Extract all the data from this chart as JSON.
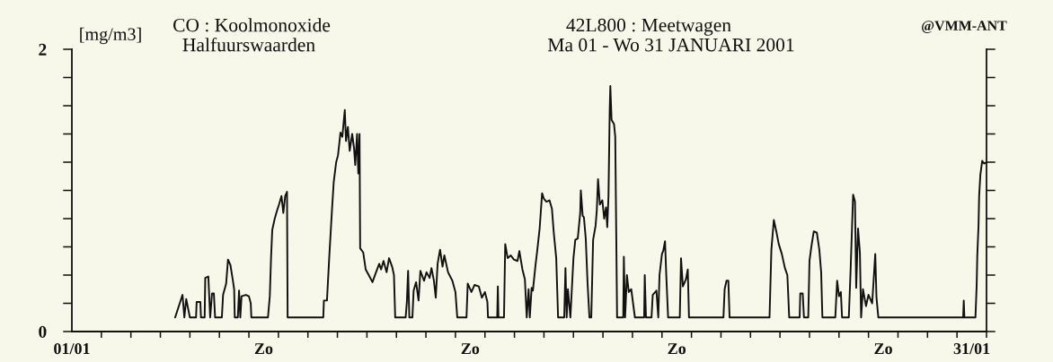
{
  "chart_data": {
    "type": "line",
    "title": "CO : Koolmonoxide",
    "subtitle": "Halfuurswaarden",
    "ylabel": "[mg/m3]",
    "annotations": [
      "42L800 : Meetwagen",
      "Ma 01 - Wo 31 JANUARI 2001",
      "@VMM-ANT"
    ],
    "xlim": [
      "2001-01-01T00:00",
      "2001-02-01T00:00"
    ],
    "ylim": [
      0,
      2
    ],
    "xticks": [
      {
        "value": "2001-01-01",
        "label": "01/01"
      },
      {
        "value": "2001-01-02",
        "label": null
      },
      {
        "value": "2001-01-03",
        "label": null
      },
      {
        "value": "2001-01-04",
        "label": null
      },
      {
        "value": "2001-01-05",
        "label": null
      },
      {
        "value": "2001-01-06",
        "label": null
      },
      {
        "value": "2001-01-07",
        "label": null
      },
      {
        "value": "2001-01-07T12:00",
        "label": "Zo"
      },
      {
        "value": "2001-01-08",
        "label": null
      },
      {
        "value": "2001-01-09",
        "label": null
      },
      {
        "value": "2001-01-10",
        "label": null
      },
      {
        "value": "2001-01-11",
        "label": null
      },
      {
        "value": "2001-01-12",
        "label": null
      },
      {
        "value": "2001-01-13",
        "label": null
      },
      {
        "value": "2001-01-14",
        "label": null
      },
      {
        "value": "2001-01-14T12:00",
        "label": "Zo"
      },
      {
        "value": "2001-01-15",
        "label": null
      },
      {
        "value": "2001-01-16",
        "label": null
      },
      {
        "value": "2001-01-17",
        "label": null
      },
      {
        "value": "2001-01-18",
        "label": null
      },
      {
        "value": "2001-01-19",
        "label": null
      },
      {
        "value": "2001-01-20",
        "label": null
      },
      {
        "value": "2001-01-21",
        "label": null
      },
      {
        "value": "2001-01-21T12:00",
        "label": "Zo"
      },
      {
        "value": "2001-01-22",
        "label": null
      },
      {
        "value": "2001-01-23",
        "label": null
      },
      {
        "value": "2001-01-24",
        "label": null
      },
      {
        "value": "2001-01-25",
        "label": null
      },
      {
        "value": "2001-01-26",
        "label": null
      },
      {
        "value": "2001-01-27",
        "label": null
      },
      {
        "value": "2001-01-28",
        "label": null
      },
      {
        "value": "2001-01-28T12:00",
        "label": "Zo"
      },
      {
        "value": "2001-01-29",
        "label": null
      },
      {
        "value": "2001-01-30",
        "label": null
      },
      {
        "value": "2001-01-31",
        "label": null
      },
      {
        "value": "2001-01-31T12:00",
        "label": "31/01"
      },
      {
        "value": "2001-02-01",
        "label": null
      }
    ],
    "yticks": [
      0,
      {
        "value": 0.2,
        "label": null
      },
      {
        "value": 0.4,
        "label": null
      },
      {
        "value": 0.6,
        "label": null
      },
      {
        "value": 0.8,
        "label": null
      },
      {
        "value": 1.0,
        "label": null
      },
      {
        "value": 1.2,
        "label": null
      },
      {
        "value": 1.4,
        "label": null
      },
      {
        "value": 1.6,
        "label": null
      },
      {
        "value": 1.8,
        "label": null
      },
      2
    ],
    "x": [
      "2001-01-04T12:00",
      "2001-01-04T18:00",
      "2001-01-04T19:30",
      "2001-01-04T21:00",
      "2001-01-05T00:00",
      "2001-01-05T05:00",
      "2001-01-05T05:30",
      "2001-01-05T08:30",
      "2001-01-05T09:00",
      "2001-01-05T12:00",
      "2001-01-05T12:30",
      "2001-01-05T15:00",
      "2001-01-05T16:30",
      "2001-01-05T18:00",
      "2001-01-05T19:30",
      "2001-01-05T20:30",
      "2001-01-06T02:00",
      "2001-01-06T03:00",
      "2001-01-06T05:30",
      "2001-01-06T07:00",
      "2001-01-06T09:00",
      "2001-01-06T11:00",
      "2001-01-06T12:00",
      "2001-01-06T12:30",
      "2001-01-06T15:00",
      "2001-01-06T16:00",
      "2001-01-06T17:00",
      "2001-01-06T18:00",
      "2001-01-06T21:30",
      "2001-01-07T00:00",
      "2001-01-07T01:30",
      "2001-01-07T02:00",
      "2001-01-07T15:30",
      "2001-01-07T17:00",
      "2001-01-07T18:00",
      "2001-01-07T19:00",
      "2001-01-07T21:00",
      "2001-01-07T23:00",
      "2001-01-08T00:30",
      "2001-01-08T02:30",
      "2001-01-08T04:00",
      "2001-01-08T05:30",
      "2001-01-08T07:00",
      "2001-01-08T07:30",
      "2001-01-09T12:30",
      "2001-01-09T13:00",
      "2001-01-09T15:30",
      "2001-01-09T17:30",
      "2001-01-09T19:30",
      "2001-01-09T21:00",
      "2001-01-09T23:00",
      "2001-01-10T00:30",
      "2001-01-10T02:30",
      "2001-01-10T04:00",
      "2001-01-10T06:00",
      "2001-01-10T07:00",
      "2001-01-10T08:30",
      "2001-01-10T10:00",
      "2001-01-10T12:00",
      "2001-01-10T13:30",
      "2001-01-10T14:30",
      "2001-01-10T16:00",
      "2001-01-10T17:00",
      "2001-01-10T18:00",
      "2001-01-10T18:30",
      "2001-01-10T21:00",
      "2001-01-10T23:00",
      "2001-01-11T01:30",
      "2001-01-11T04:30",
      "2001-01-11T07:00",
      "2001-01-11T10:00",
      "2001-01-11T11:30",
      "2001-01-11T13:30",
      "2001-01-11T16:00",
      "2001-01-11T18:00",
      "2001-01-11T20:30",
      "2001-01-11T22:00",
      "2001-01-11T23:00",
      "2001-01-12T07:30",
      "2001-01-12T08:30",
      "2001-01-12T09:30",
      "2001-01-12T10:30",
      "2001-01-12T13:00",
      "2001-01-12T14:00",
      "2001-01-12T16:00",
      "2001-01-12T18:00",
      "2001-01-12T19:30",
      "2001-01-12T22:30",
      "2001-01-13T00:30",
      "2001-01-13T03:00",
      "2001-01-13T04:30",
      "2001-01-13T06:30",
      "2001-01-13T08:00",
      "2001-01-13T09:30",
      "2001-01-13T11:30",
      "2001-01-13T13:30",
      "2001-01-13T15:00",
      "2001-01-13T18:00",
      "2001-01-13T21:30",
      "2001-01-14T00:00",
      "2001-01-14T01:30",
      "2001-01-14T09:00",
      "2001-01-14T10:00",
      "2001-01-14T13:00",
      "2001-01-14T15:30",
      "2001-01-14T19:00",
      "2001-01-14T21:30",
      "2001-01-15T00:00",
      "2001-01-15T02:00",
      "2001-01-15T02:30",
      "2001-01-15T10:00",
      "2001-01-15T10:30",
      "2001-01-15T11:00",
      "2001-01-15T15:30",
      "2001-01-15T16:30",
      "2001-01-15T18:30",
      "2001-01-15T21:00",
      "2001-01-15T23:30",
      "2001-01-16T02:30",
      "2001-01-16T04:00",
      "2001-01-16T06:30",
      "2001-01-16T08:30",
      "2001-01-16T10:00",
      "2001-01-16T11:30",
      "2001-01-16T12:30",
      "2001-01-16T14:00",
      "2001-01-16T15:00",
      "2001-01-16T17:00",
      "2001-01-16T18:30",
      "2001-01-16T20:30",
      "2001-01-16T22:30",
      "2001-01-17T00:00",
      "2001-01-17T02:00",
      "2001-01-17T04:30",
      "2001-01-17T06:30",
      "2001-01-17T08:00",
      "2001-01-17T10:00",
      "2001-01-17T11:30",
      "2001-01-17T16:30",
      "2001-01-17T17:30",
      "2001-01-17T18:30",
      "2001-01-17T19:30",
      "2001-01-17T21:30",
      "2001-01-18T00:00",
      "2001-01-18T01:30",
      "2001-01-18T03:30",
      "2001-01-18T05:30",
      "2001-01-18T06:00",
      "2001-01-18T07:30",
      "2001-01-18T08:30",
      "2001-01-18T10:00",
      "2001-01-18T11:30",
      "2001-01-18T13:00",
      "2001-01-18T14:30",
      "2001-01-18T16:00",
      "2001-01-18T18:00",
      "2001-01-18T19:00",
      "2001-01-18T20:00",
      "2001-01-18T21:30",
      "2001-01-18T23:30",
      "2001-01-19T01:00",
      "2001-01-19T02:30",
      "2001-01-19T03:30",
      "2001-01-19T04:30",
      "2001-01-19T05:30",
      "2001-01-19T06:00",
      "2001-01-19T07:00",
      "2001-01-19T09:00",
      "2001-01-19T10:00",
      "2001-01-19T11:30",
      "2001-01-19T16:30",
      "2001-01-19T17:00",
      "2001-01-19T18:00",
      "2001-01-19T19:30",
      "2001-01-19T21:00",
      "2001-01-19T23:00",
      "2001-01-20T00:30",
      "2001-01-20T02:00",
      "2001-01-20T09:30",
      "2001-01-20T10:00",
      "2001-01-20T11:00",
      "2001-01-20T15:30",
      "2001-01-20T16:30",
      "2001-01-20T19:30",
      "2001-01-20T21:00",
      "2001-01-20T22:00",
      "2001-01-21T00:00",
      "2001-01-21T01:00",
      "2001-01-21T02:30",
      "2001-01-21T03:30",
      "2001-01-21T05:00",
      "2001-01-21T14:30",
      "2001-01-21T15:30",
      "2001-01-21T17:00",
      "2001-01-21T19:30",
      "2001-01-21T21:00",
      "2001-01-21T22:00",
      "2001-01-23T02:00",
      "2001-01-23T03:00",
      "2001-01-23T04:30",
      "2001-01-23T06:00",
      "2001-01-23T07:00",
      "2001-01-24T15:30",
      "2001-01-24T17:00",
      "2001-01-24T19:00",
      "2001-01-24T21:00",
      "2001-01-24T23:00",
      "2001-01-25T01:30",
      "2001-01-25T04:00",
      "2001-01-25T06:00",
      "2001-01-25T07:30",
      "2001-01-25T16:00",
      "2001-01-25T16:30",
      "2001-01-25T18:30",
      "2001-01-25T19:30",
      "2001-01-25T23:00",
      "2001-01-26T00:00",
      "2001-01-26T01:30",
      "2001-01-26T03:30",
      "2001-01-26T06:00",
      "2001-01-26T08:00",
      "2001-01-26T09:30",
      "2001-01-26T10:30",
      "2001-01-26T21:00",
      "2001-01-26T22:30",
      "2001-01-27T00:00",
      "2001-01-27T01:30",
      "2001-01-27T02:30",
      "2001-01-27T08:00",
      "2001-01-27T09:30",
      "2001-01-27T11:30",
      "2001-01-27T13:00",
      "2001-01-27T14:00",
      "2001-01-27T15:30",
      "2001-01-27T17:00",
      "2001-01-27T18:00",
      "2001-01-27T19:30",
      "2001-01-27T22:00",
      "2001-01-28T00:00",
      "2001-01-28T03:00",
      "2001-01-28T05:30",
      "2001-01-28T06:30",
      "2001-01-28T08:00",
      "2001-01-31T05:00",
      "2001-01-31T05:30",
      "2001-01-31T06:00",
      "2001-01-31T15:00",
      "2001-01-31T16:00",
      "2001-01-31T16:30",
      "2001-01-31T17:30",
      "2001-01-31T18:00",
      "2001-01-31T19:00",
      "2001-01-31T20:30",
      "2001-01-31T22:00",
      "2001-02-01T00:00"
    ],
    "series": [
      {
        "color": "#111111",
        "values": [
          0.1,
          0.26,
          0.1,
          0.23,
          0.1,
          0.1,
          0.21,
          0.21,
          0.1,
          0.1,
          0.38,
          0.39,
          0.1,
          0.27,
          0.27,
          0.1,
          0.1,
          0.26,
          0.34,
          0.51,
          0.47,
          0.36,
          0.3,
          0.1,
          0.1,
          0.29,
          0.1,
          0.25,
          0.26,
          0.25,
          0.2,
          0.1,
          0.1,
          0.25,
          0.52,
          0.72,
          0.8,
          0.86,
          0.9,
          0.96,
          0.84,
          0.96,
          0.99,
          0.1,
          0.1,
          0.22,
          0.22,
          0.55,
          0.85,
          1.06,
          1.2,
          1.25,
          1.41,
          1.38,
          1.57,
          1.35,
          1.45,
          1.28,
          1.4,
          1.3,
          1.18,
          1.4,
          1.12,
          1.4,
          0.59,
          0.56,
          0.44,
          0.4,
          0.35,
          0.41,
          0.48,
          0.44,
          0.5,
          0.42,
          0.52,
          0.46,
          0.4,
          0.1,
          0.1,
          0.21,
          0.43,
          0.1,
          0.1,
          0.29,
          0.35,
          0.22,
          0.43,
          0.36,
          0.42,
          0.38,
          0.45,
          0.36,
          0.24,
          0.48,
          0.58,
          0.46,
          0.54,
          0.42,
          0.36,
          0.28,
          0.1,
          0.1,
          0.34,
          0.28,
          0.33,
          0.32,
          0.24,
          0.28,
          0.21,
          0.1,
          0.1,
          0.32,
          0.1,
          0.1,
          0.62,
          0.52,
          0.54,
          0.51,
          0.5,
          0.57,
          0.44,
          0.37,
          0.1,
          0.3,
          0.1,
          0.31,
          0.29,
          0.46,
          0.57,
          0.73,
          0.98,
          0.94,
          0.92,
          0.93,
          0.87,
          0.7,
          0.52,
          0.1,
          0.1,
          0.45,
          0.1,
          0.3,
          0.1,
          0.52,
          0.65,
          0.66,
          0.84,
          1.0,
          0.82,
          0.81,
          0.66,
          0.34,
          0.1,
          0.1,
          0.65,
          0.75,
          0.86,
          1.08,
          0.9,
          0.93,
          0.8,
          0.88,
          0.74,
          0.96,
          1.57,
          1.74,
          1.5,
          1.47,
          1.38,
          0.1,
          0.1,
          0.53,
          0.1,
          0.4,
          0.28,
          0.3,
          0.2,
          0.1,
          0.1,
          0.4,
          0.1,
          0.1,
          0.26,
          0.29,
          0.1,
          0.4,
          0.55,
          0.57,
          0.64,
          0.4,
          0.1,
          0.1,
          0.52,
          0.32,
          0.37,
          0.44,
          0.1,
          0.1,
          0.3,
          0.36,
          0.36,
          0.1,
          0.1,
          0.58,
          0.79,
          0.71,
          0.62,
          0.55,
          0.45,
          0.4,
          0.1,
          0.1,
          0.27,
          0.27,
          0.1,
          0.1,
          0.5,
          0.6,
          0.71,
          0.7,
          0.58,
          0.42,
          0.1,
          0.1,
          0.36,
          0.25,
          0.28,
          0.1,
          0.1,
          0.45,
          0.97,
          0.92,
          0.31,
          0.73,
          0.56,
          0.1,
          0.3,
          0.18,
          0.26,
          0.2,
          0.55,
          0.24,
          0.1,
          0.1,
          0.22,
          0.1,
          0.1,
          0.33,
          0.54,
          0.75,
          0.96,
          1.11,
          1.21,
          1.19,
          1.2
        ]
      }
    ]
  }
}
